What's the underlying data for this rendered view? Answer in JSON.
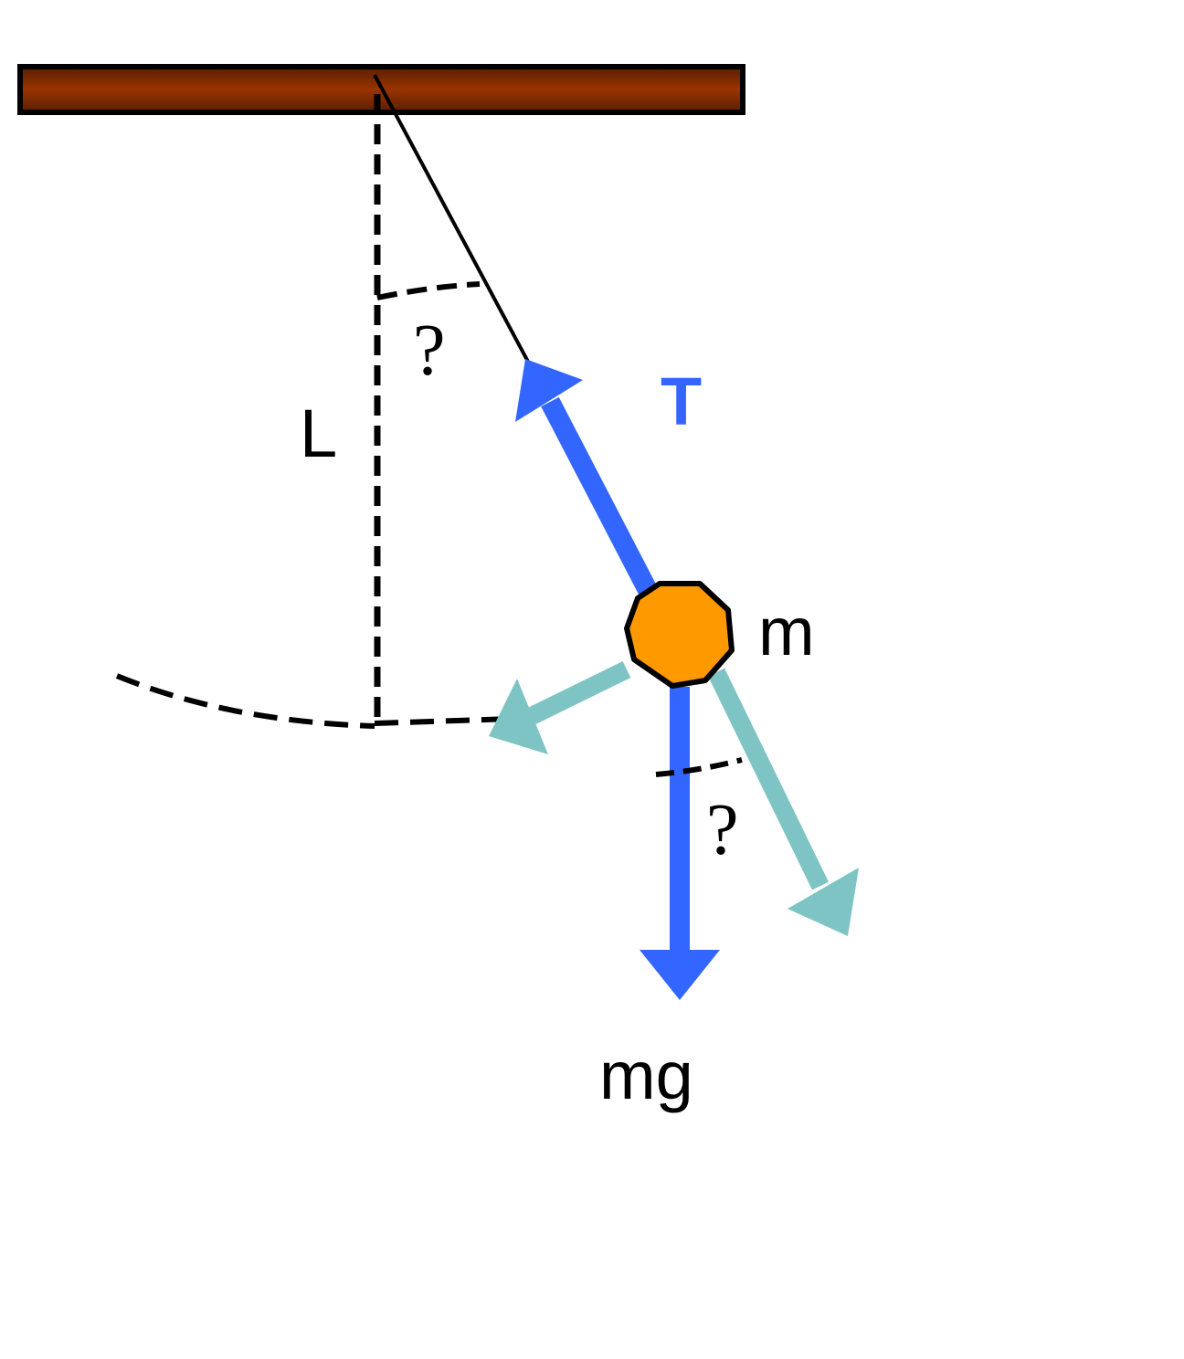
{
  "labels": {
    "length": "L",
    "angle_top": "?",
    "tension": "T",
    "mass": "m",
    "weight": "mg",
    "angle_bottom": "?"
  },
  "colors": {
    "ceiling_top": "#5a1f00",
    "ceiling_mid": "#993300",
    "force_arrow": "#3366ff",
    "component_arrow": "#7fc4c4",
    "bob_fill": "#ff9900",
    "outline": "#000000",
    "tension_label": "#3366ff"
  }
}
